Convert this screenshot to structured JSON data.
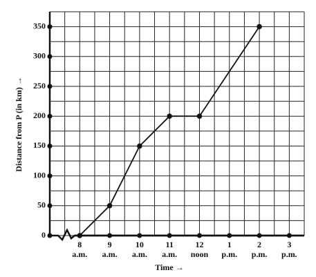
{
  "chart_data": {
    "type": "line",
    "x_label": "Time →",
    "y_label": "Distance from P (in km) →",
    "x": [
      8,
      9,
      10,
      11,
      12,
      14
    ],
    "values": [
      0,
      50,
      150,
      200,
      200,
      350
    ],
    "color": "#111111",
    "xlim": [
      7,
      15.5
    ],
    "ylim": [
      0,
      375
    ],
    "xticks": [
      {
        "value": 8,
        "label": [
          "8",
          "a.m."
        ]
      },
      {
        "value": 9,
        "label": [
          "9",
          "a.m."
        ]
      },
      {
        "value": 10,
        "label": [
          "10",
          "a.m."
        ]
      },
      {
        "value": 11,
        "label": [
          "11",
          "a.m."
        ]
      },
      {
        "value": 12,
        "label": [
          "12",
          "noon"
        ]
      },
      {
        "value": 13,
        "label": [
          "1",
          "p.m."
        ]
      },
      {
        "value": 14,
        "label": [
          "2",
          "p.m."
        ]
      },
      {
        "value": 15,
        "label": [
          "3",
          "p.m."
        ]
      }
    ],
    "yticks": [
      0,
      50,
      100,
      150,
      200,
      250,
      300,
      350
    ],
    "grid": true
  }
}
